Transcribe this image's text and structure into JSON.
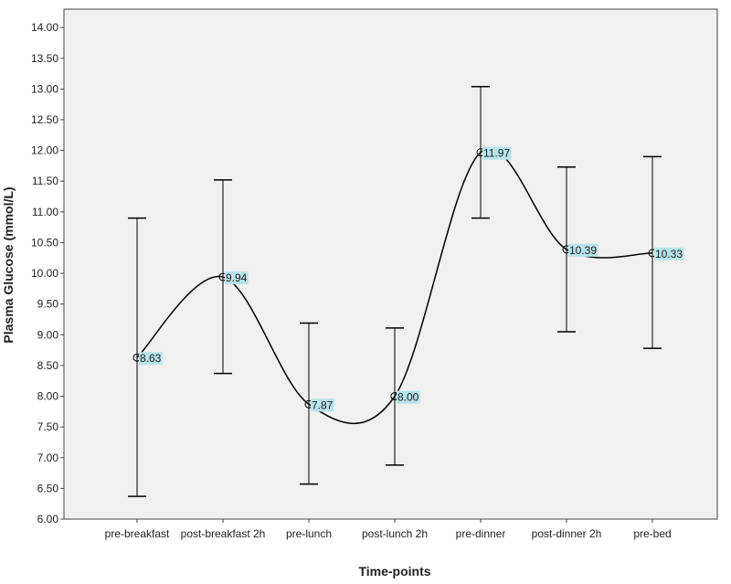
{
  "chart_data": {
    "type": "line",
    "y_label": "Plasma Glucose (mmol/L)",
    "x_label": "Time-points",
    "categories": [
      "pre-breakfast",
      "post-breakfast 2h",
      "pre-lunch",
      "post-lunch 2h",
      "pre-dinner",
      "post-dinner 2h",
      "pre-bed"
    ],
    "values": [
      8.63,
      9.94,
      7.87,
      8.0,
      11.97,
      10.39,
      10.33
    ],
    "value_labels": [
      "8.63",
      "9.94",
      "7.87",
      "8.00",
      "11.97",
      "10.39",
      "10.33"
    ],
    "upper": [
      10.9,
      11.52,
      9.19,
      9.11,
      13.04,
      11.73,
      11.9
    ],
    "lower": [
      6.37,
      8.37,
      6.57,
      6.88,
      10.9,
      9.05,
      8.78
    ],
    "color": "#000000",
    "label_background": "#b7e3ea",
    "ylim": [
      6,
      14.3
    ],
    "yticks": [
      {
        "value": 6,
        "label": "6.00"
      },
      {
        "value": 6.5,
        "label": "6.50"
      },
      {
        "value": 7,
        "label": "7.00"
      },
      {
        "value": 7.5,
        "label": "7.50"
      },
      {
        "value": 8,
        "label": "8.00"
      },
      {
        "value": 8.5,
        "label": "8.50"
      },
      {
        "value": 9,
        "label": "9.00"
      },
      {
        "value": 9.5,
        "label": "9.50"
      },
      {
        "value": 10,
        "label": "10.00"
      },
      {
        "value": 10.5,
        "label": "10.50"
      },
      {
        "value": 11,
        "label": "11.00"
      },
      {
        "value": 11.5,
        "label": "11.50"
      },
      {
        "value": 12,
        "label": "12.00"
      },
      {
        "value": 12.5,
        "label": "12.50"
      },
      {
        "value": 13,
        "label": "13.00"
      },
      {
        "value": 13.5,
        "label": "13.50"
      },
      {
        "value": 14,
        "label": "14.00"
      }
    ]
  }
}
